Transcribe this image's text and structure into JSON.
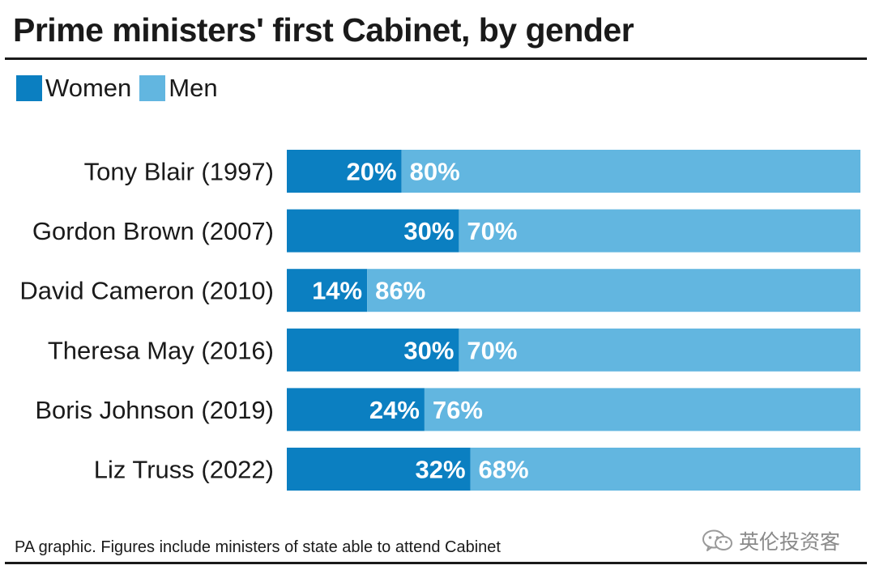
{
  "title": "Prime ministers' first Cabinet, by gender",
  "legend": {
    "women_label": "Women",
    "men_label": "Men"
  },
  "footnote": "PA graphic. Figures include ministers of state able to attend Cabinet",
  "watermark": "英伦投资客",
  "colors": {
    "women": "#0b7fc1",
    "men": "#62b6e0"
  },
  "chart_data": {
    "type": "bar",
    "orientation": "horizontal",
    "stacked": true,
    "normalized_percent": true,
    "title": "Prime ministers' first Cabinet, by gender",
    "legend_position": "top-left",
    "grid": false,
    "xlim": [
      0,
      100
    ],
    "categories": [
      "Tony Blair (1997)",
      "Gordon Brown (2007)",
      "David Cameron (2010)",
      "Theresa May (2016)",
      "Boris Johnson (2019)",
      "Liz Truss (2022)"
    ],
    "series": [
      {
        "name": "Women",
        "values": [
          20,
          30,
          14,
          30,
          24,
          32
        ]
      },
      {
        "name": "Men",
        "values": [
          80,
          70,
          86,
          70,
          76,
          68
        ]
      }
    ],
    "value_suffix": "%"
  }
}
